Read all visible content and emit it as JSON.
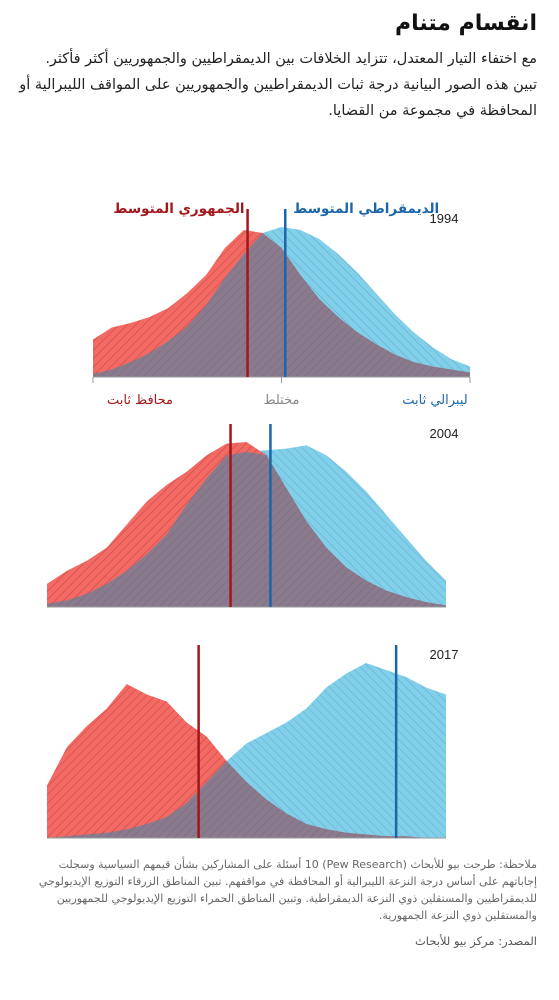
{
  "header": {
    "title": "انقسام متنام",
    "intro": "مع اختفاء التيار المعتدل، تتزايد الخلافات بين الديمقراطيين والجمهوريين أكثر فأكثر. تبين هذه الصور البيانية درجة ثبات الديمقراطيين والجمهوريين على المواقف الليبرالية أو المحافظة في مجموعة من القضايا."
  },
  "colors": {
    "republican": "#f26a63",
    "democrat": "#82cfe9",
    "overlap": "#8a7a8e",
    "republican_line": "#a3161b",
    "democrat_line": "#1b66a8"
  },
  "labels": {
    "republican_median": "الجمهوري المتوسط",
    "democrat_median": "الديمقراطي المتوسط",
    "consistent_conservative": "محافظ ثابت",
    "mixed": "مختلط",
    "consistent_liberal": "ليبرالي ثابت"
  },
  "notes": {
    "note": "ملاحظة: طرحت بيو للأبحاث (Pew Research) 10 أسئلة على المشاركين بشأن قيمهم السياسية وسجلت إجاباتهم على أساس درجة النزعة الليبرالية أو المحافظة في مواقفهم. تبين المناطق الزرقاء التوزيع الإيديولوجي للديمقراطيين والمستقلين ذوي النزعة الديمقراطية. وتبين المناطق الحمراء التوزيع الإيديولوجي للجمهوريين والمستقلين ذوي النزعة الجمهورية.",
    "source": "المصدر: مركز بيو للأبحاث"
  },
  "chart_data": [
    {
      "type": "area",
      "year": "1994",
      "xlim": [
        0,
        20
      ],
      "ylim": [
        0,
        1
      ],
      "x": [
        0,
        1,
        2,
        3,
        4,
        5,
        6,
        7,
        8,
        9,
        10,
        11,
        12,
        13,
        14,
        15,
        16,
        17,
        18,
        19,
        20
      ],
      "series": [
        {
          "name": "الجمهوري المتوسط",
          "values": [
            0.25,
            0.33,
            0.36,
            0.4,
            0.46,
            0.56,
            0.68,
            0.86,
            0.98,
            0.96,
            0.86,
            0.68,
            0.52,
            0.4,
            0.3,
            0.22,
            0.15,
            0.1,
            0.07,
            0.05,
            0.03
          ]
        },
        {
          "name": "الديمقراطي المتوسط",
          "values": [
            0.02,
            0.05,
            0.1,
            0.16,
            0.24,
            0.34,
            0.48,
            0.66,
            0.82,
            0.96,
            1.0,
            0.98,
            0.92,
            0.82,
            0.7,
            0.56,
            0.42,
            0.3,
            0.2,
            0.12,
            0.07
          ]
        }
      ],
      "median_republican": 8.2,
      "median_democrat": 10.2
    },
    {
      "type": "area",
      "year": "2004",
      "xlim": [
        0,
        20
      ],
      "ylim": [
        0,
        1
      ],
      "x": [
        0,
        1,
        2,
        3,
        4,
        5,
        6,
        7,
        8,
        9,
        10,
        11,
        12,
        13,
        14,
        15,
        16,
        17,
        18,
        19,
        20
      ],
      "series": [
        {
          "name": "الجمهوري المتوسط",
          "values": [
            0.14,
            0.22,
            0.28,
            0.36,
            0.5,
            0.64,
            0.74,
            0.82,
            0.92,
            0.99,
            1.0,
            0.92,
            0.72,
            0.52,
            0.36,
            0.24,
            0.16,
            0.1,
            0.06,
            0.03,
            0.01
          ]
        },
        {
          "name": "الديمقراطي المتوسط",
          "values": [
            0.02,
            0.04,
            0.08,
            0.14,
            0.22,
            0.32,
            0.44,
            0.62,
            0.78,
            0.92,
            0.94,
            0.95,
            0.96,
            0.98,
            0.92,
            0.82,
            0.7,
            0.56,
            0.42,
            0.28,
            0.16
          ]
        }
      ],
      "median_republican": 9.2,
      "median_democrat": 11.2
    },
    {
      "type": "area",
      "year": "2017",
      "xlim": [
        0,
        20
      ],
      "ylim": [
        0,
        1
      ],
      "x": [
        0,
        1,
        2,
        3,
        4,
        5,
        6,
        7,
        8,
        9,
        10,
        11,
        12,
        13,
        14,
        15,
        16,
        17,
        18,
        19,
        20
      ],
      "series": [
        {
          "name": "الجمهوري المتوسط",
          "values": [
            0.3,
            0.52,
            0.64,
            0.74,
            0.88,
            0.82,
            0.78,
            0.66,
            0.58,
            0.44,
            0.32,
            0.22,
            0.14,
            0.08,
            0.05,
            0.03,
            0.02,
            0.01,
            0.01,
            0.0,
            0.0
          ]
        },
        {
          "name": "الديمقراطي المتوسط",
          "values": [
            0.0,
            0.01,
            0.02,
            0.03,
            0.05,
            0.08,
            0.12,
            0.2,
            0.32,
            0.44,
            0.54,
            0.6,
            0.66,
            0.74,
            0.86,
            0.94,
            1.0,
            0.96,
            0.92,
            0.86,
            0.82
          ]
        }
      ],
      "median_republican": 7.6,
      "median_democrat": 17.5
    }
  ]
}
